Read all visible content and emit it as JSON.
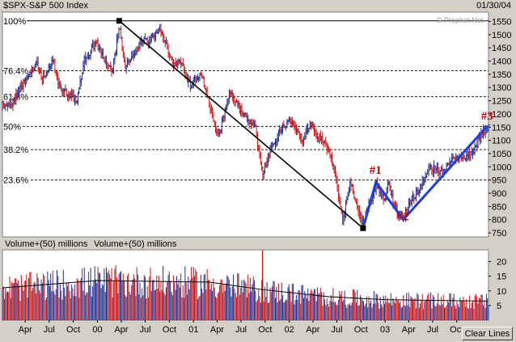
{
  "header": {
    "title": "$SPX-S&P 500 Index",
    "date": "01/30/04",
    "watermark": "© Prophet.Net"
  },
  "chart_data": {
    "type": "candlestick",
    "price_panel": {
      "yticks": [
        750,
        800,
        850,
        900,
        950,
        1000,
        1050,
        1100,
        1150,
        1200,
        1250,
        1300,
        1350,
        1400,
        1450,
        1500,
        1550
      ],
      "ylim": [
        735,
        1585
      ],
      "fib_levels": [
        {
          "label": "100%",
          "value": 1552
        },
        {
          "label": "76.4%",
          "value": 1363
        },
        {
          "label": "61.8%",
          "value": 1265
        },
        {
          "label": "50%",
          "value": 1153
        },
        {
          "label": "38.2%",
          "value": 1065
        },
        {
          "label": "23.6%",
          "value": 950
        }
      ],
      "pattern_labels": [
        {
          "label": "#1",
          "x": "2002-11-27",
          "y": 955
        },
        {
          "label": "#2",
          "x": "2003-03-11",
          "y": 780
        },
        {
          "label": "#3",
          "x": "2004-01-26",
          "y": 1160
        }
      ],
      "trendline": [
        {
          "x": "2000-03-24",
          "y": 1552
        },
        {
          "x": "2002-10-09",
          "y": 768
        }
      ],
      "pattern_line": [
        {
          "x": "2002-10-09",
          "y": 768
        },
        {
          "x": "2002-11-27",
          "y": 943
        },
        {
          "x": "2003-03-11",
          "y": 800
        },
        {
          "x": "2004-01-26",
          "y": 1155
        }
      ],
      "anchor_points": [
        {
          "x": "2000-03-24",
          "y": 1552
        },
        {
          "x": "2002-10-09",
          "y": 768
        }
      ],
      "path": [
        {
          "x": "1999-01-04",
          "y": 1230
        },
        {
          "x": "1999-02-10",
          "y": 1240
        },
        {
          "x": "1999-04-10",
          "y": 1340
        },
        {
          "x": "1999-05-15",
          "y": 1390
        },
        {
          "x": "1999-06-05",
          "y": 1330
        },
        {
          "x": "1999-07-15",
          "y": 1410
        },
        {
          "x": "1999-08-10",
          "y": 1300
        },
        {
          "x": "1999-10-15",
          "y": 1250
        },
        {
          "x": "1999-11-10",
          "y": 1400
        },
        {
          "x": "1999-12-28",
          "y": 1470
        },
        {
          "x": "2000-01-20",
          "y": 1420
        },
        {
          "x": "2000-02-25",
          "y": 1350
        },
        {
          "x": "2000-03-24",
          "y": 1530
        },
        {
          "x": "2000-04-15",
          "y": 1380
        },
        {
          "x": "2000-05-20",
          "y": 1420
        },
        {
          "x": "2000-06-10",
          "y": 1470
        },
        {
          "x": "2000-07-20",
          "y": 1480
        },
        {
          "x": "2000-09-01",
          "y": 1510
        },
        {
          "x": "2000-10-15",
          "y": 1380
        },
        {
          "x": "2000-11-10",
          "y": 1400
        },
        {
          "x": "2000-12-20",
          "y": 1300
        },
        {
          "x": "2001-01-30",
          "y": 1360
        },
        {
          "x": "2001-03-01",
          "y": 1240
        },
        {
          "x": "2001-04-04",
          "y": 1110
        },
        {
          "x": "2001-05-20",
          "y": 1280
        },
        {
          "x": "2001-07-10",
          "y": 1200
        },
        {
          "x": "2001-08-25",
          "y": 1140
        },
        {
          "x": "2001-09-21",
          "y": 970
        },
        {
          "x": "2001-10-25",
          "y": 1080
        },
        {
          "x": "2001-12-10",
          "y": 1150
        },
        {
          "x": "2002-01-07",
          "y": 1170
        },
        {
          "x": "2002-02-20",
          "y": 1090
        },
        {
          "x": "2002-03-19",
          "y": 1165
        },
        {
          "x": "2002-04-20",
          "y": 1110
        },
        {
          "x": "2002-05-20",
          "y": 1090
        },
        {
          "x": "2002-06-20",
          "y": 990
        },
        {
          "x": "2002-07-23",
          "y": 800
        },
        {
          "x": "2002-08-22",
          "y": 940
        },
        {
          "x": "2002-09-20",
          "y": 840
        },
        {
          "x": "2002-10-09",
          "y": 780
        },
        {
          "x": "2002-11-27",
          "y": 935
        },
        {
          "x": "2002-12-25",
          "y": 880
        },
        {
          "x": "2003-01-14",
          "y": 930
        },
        {
          "x": "2003-02-15",
          "y": 830
        },
        {
          "x": "2003-03-11",
          "y": 805
        },
        {
          "x": "2003-04-15",
          "y": 880
        },
        {
          "x": "2003-05-20",
          "y": 940
        },
        {
          "x": "2003-06-17",
          "y": 1000
        },
        {
          "x": "2003-08-10",
          "y": 975
        },
        {
          "x": "2003-09-20",
          "y": 1030
        },
        {
          "x": "2003-10-20",
          "y": 1040
        },
        {
          "x": "2003-11-20",
          "y": 1045
        },
        {
          "x": "2003-12-20",
          "y": 1095
        },
        {
          "x": "2004-01-26",
          "y": 1150
        }
      ]
    },
    "volume_panel": {
      "label": "Volume+(50) millions",
      "yticks": [
        5,
        10,
        15,
        20
      ],
      "ylim": [
        0,
        24
      ],
      "moving_average": [
        {
          "x": "1999-01-04",
          "y": 11
        },
        {
          "x": "2000-01-01",
          "y": 13.5
        },
        {
          "x": "2001-03-01",
          "y": 13
        },
        {
          "x": "2001-09-15",
          "y": 10.5
        },
        {
          "x": "2002-06-01",
          "y": 8
        },
        {
          "x": "2003-01-01",
          "y": 7
        },
        {
          "x": "2004-01-26",
          "y": 6.5
        }
      ],
      "spike": {
        "x": "2001-09-21",
        "y": 24
      }
    },
    "x_axis": {
      "ticks": [
        {
          "label": "Apr",
          "x": "1999-04-01"
        },
        {
          "label": "Jul",
          "x": "1999-07-01"
        },
        {
          "label": "Oct",
          "x": "1999-10-01"
        },
        {
          "label": "00",
          "x": "2000-01-01"
        },
        {
          "label": "Apr",
          "x": "2000-04-01"
        },
        {
          "label": "Jul",
          "x": "2000-07-01"
        },
        {
          "label": "Oct",
          "x": "2000-10-01"
        },
        {
          "label": "01",
          "x": "2001-01-01"
        },
        {
          "label": "Apr",
          "x": "2001-04-01"
        },
        {
          "label": "Jul",
          "x": "2001-07-01"
        },
        {
          "label": "Oct",
          "x": "2001-10-01"
        },
        {
          "label": "02",
          "x": "2002-01-01"
        },
        {
          "label": "Apr",
          "x": "2002-04-01"
        },
        {
          "label": "Jul",
          "x": "2002-07-01"
        },
        {
          "label": "Oct",
          "x": "2002-10-01"
        },
        {
          "label": "03",
          "x": "2003-01-01"
        },
        {
          "label": "Apr",
          "x": "2003-04-01"
        },
        {
          "label": "Jul",
          "x": "2003-07-01"
        },
        {
          "label": "Oct",
          "x": "2003-10-01"
        }
      ],
      "range": [
        "1999-01-04",
        "2004-01-30"
      ]
    },
    "colors": {
      "background": "#ffffff",
      "frame": "#d4d0c8",
      "up": "#1e2d8c",
      "down": "#d01010",
      "trendline": "#000000",
      "pattern": "#1c3fe0",
      "labels": "#cc0000",
      "volume_ma": "#000000"
    }
  },
  "button": {
    "clear_lines": "Clear Lines"
  }
}
